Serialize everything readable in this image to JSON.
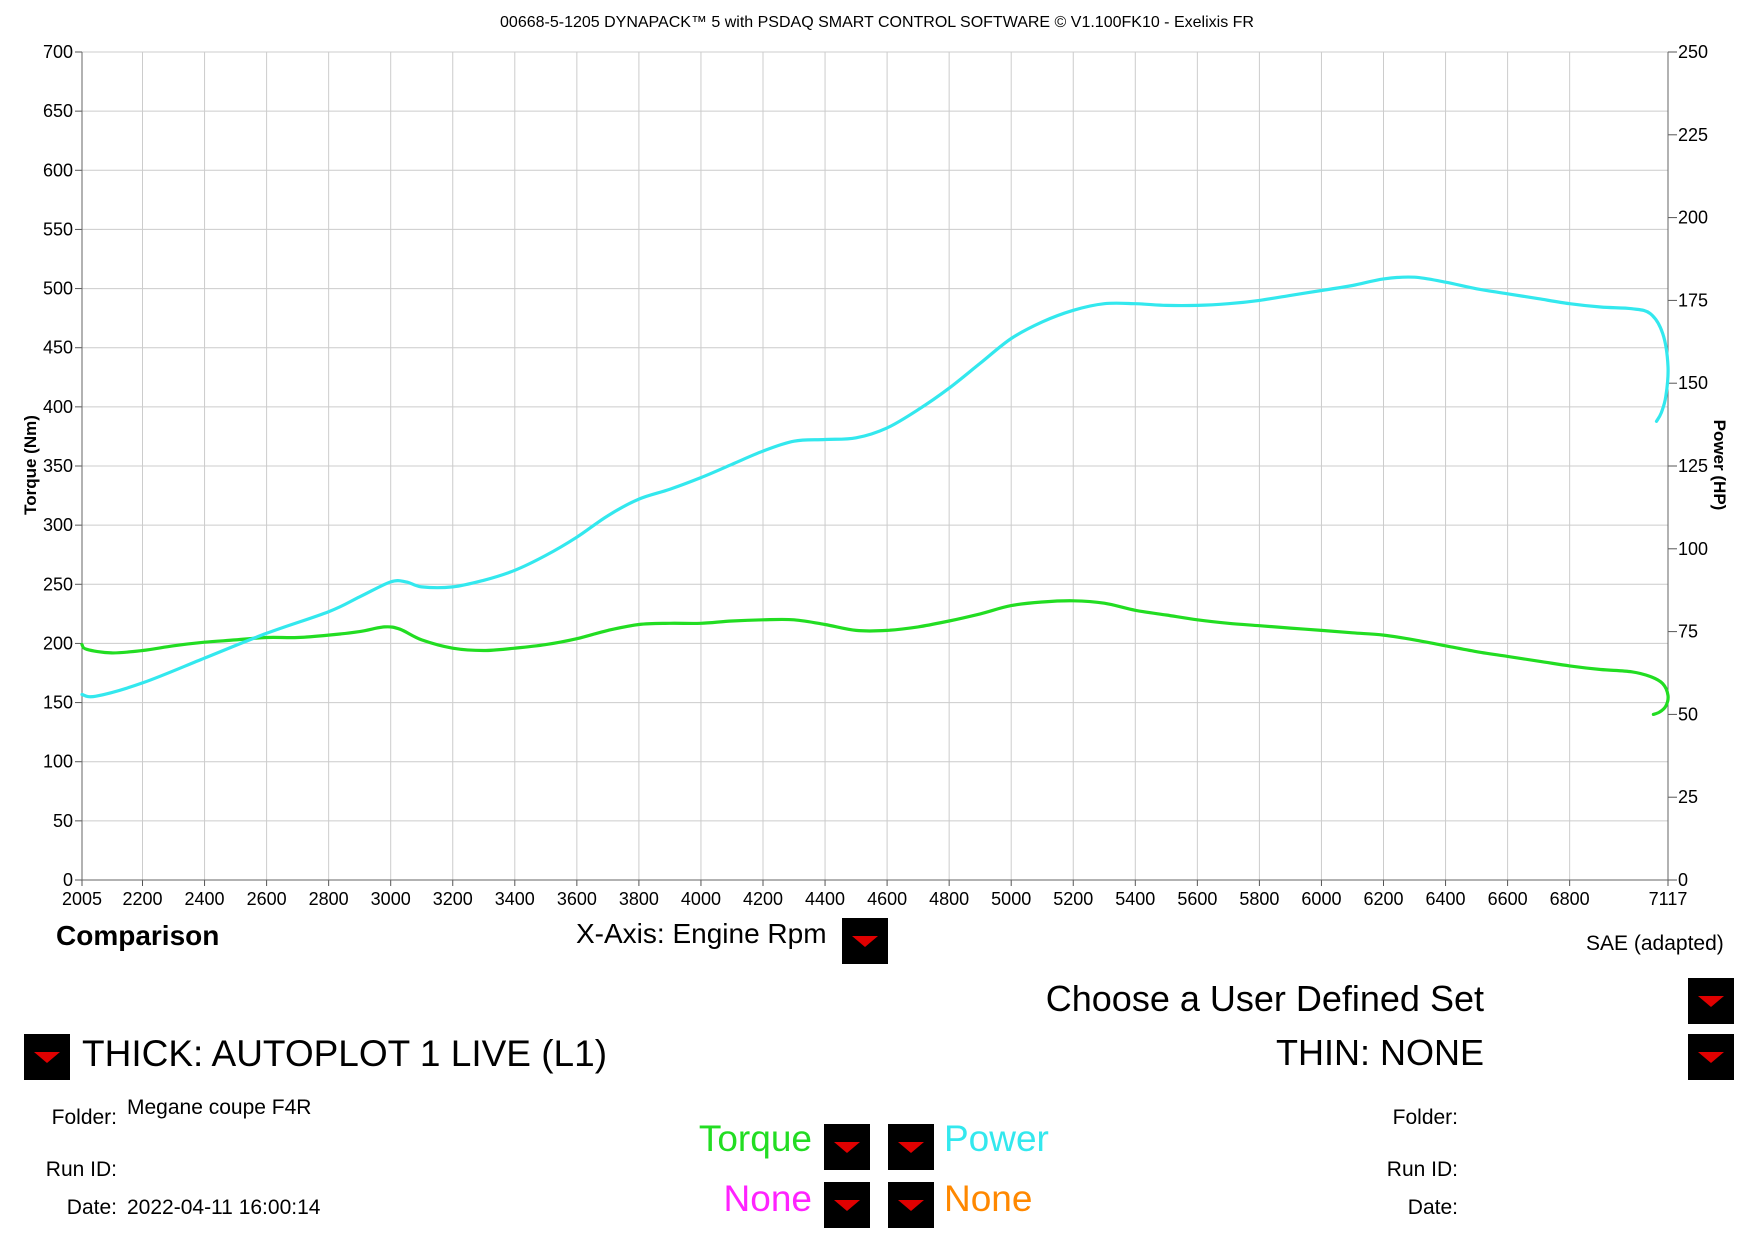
{
  "chart_data": {
    "type": "line",
    "title": "00668-5-1205 DYNAPACK™ 5 with PSDAQ SMART CONTROL SOFTWARE © V1.100FK10 - Exelixis FR",
    "xlabel": "",
    "ylabel_left": "Torque (Nm)",
    "ylabel_right": "Power (HP)",
    "xlim": [
      2005,
      7117
    ],
    "ylim_left": [
      0,
      700
    ],
    "ylim_right": [
      0,
      250
    ],
    "x_ticks": [
      "2005",
      "2200",
      "2400",
      "2600",
      "2800",
      "3000",
      "3200",
      "3400",
      "3600",
      "3800",
      "4000",
      "4200",
      "4400",
      "4600",
      "4800",
      "5000",
      "5200",
      "5400",
      "5600",
      "5800",
      "6000",
      "6200",
      "6400",
      "6600",
      "6800",
      "7117"
    ],
    "y_ticks_left": [
      "0",
      "50",
      "100",
      "150",
      "200",
      "250",
      "300",
      "350",
      "400",
      "450",
      "500",
      "550",
      "600",
      "650",
      "700"
    ],
    "y_ticks_right": [
      "0",
      "25",
      "50",
      "75",
      "100",
      "125",
      "150",
      "175",
      "200",
      "225",
      "250"
    ],
    "grid": true,
    "series": [
      {
        "name": "Torque",
        "axis": "left",
        "color": "#22dd22",
        "points": [
          [
            2005,
            199
          ],
          [
            2020,
            195
          ],
          [
            2100,
            192
          ],
          [
            2200,
            194
          ],
          [
            2300,
            198
          ],
          [
            2400,
            201
          ],
          [
            2500,
            203
          ],
          [
            2600,
            205
          ],
          [
            2700,
            205
          ],
          [
            2800,
            207
          ],
          [
            2900,
            210
          ],
          [
            2980,
            214
          ],
          [
            3030,
            212
          ],
          [
            3100,
            203
          ],
          [
            3200,
            196
          ],
          [
            3300,
            194
          ],
          [
            3400,
            196
          ],
          [
            3500,
            199
          ],
          [
            3600,
            204
          ],
          [
            3700,
            211
          ],
          [
            3800,
            216
          ],
          [
            3900,
            217
          ],
          [
            4000,
            217
          ],
          [
            4100,
            219
          ],
          [
            4200,
            220
          ],
          [
            4300,
            220
          ],
          [
            4400,
            216
          ],
          [
            4500,
            211
          ],
          [
            4600,
            211
          ],
          [
            4700,
            214
          ],
          [
            4800,
            219
          ],
          [
            4900,
            225
          ],
          [
            5000,
            232
          ],
          [
            5100,
            235
          ],
          [
            5200,
            236
          ],
          [
            5300,
            234
          ],
          [
            5400,
            228
          ],
          [
            5500,
            224
          ],
          [
            5600,
            220
          ],
          [
            5700,
            217
          ],
          [
            5800,
            215
          ],
          [
            5900,
            213
          ],
          [
            6000,
            211
          ],
          [
            6100,
            209
          ],
          [
            6200,
            207
          ],
          [
            6300,
            203
          ],
          [
            6400,
            198
          ],
          [
            6500,
            193
          ],
          [
            6600,
            189
          ],
          [
            6700,
            185
          ],
          [
            6800,
            181
          ],
          [
            6900,
            178
          ],
          [
            7000,
            176
          ],
          [
            7060,
            172
          ],
          [
            7100,
            166
          ],
          [
            7117,
            156
          ],
          [
            7110,
            147
          ],
          [
            7090,
            142
          ],
          [
            7070,
            140
          ]
        ]
      },
      {
        "name": "Power",
        "axis": "right",
        "color": "#33e8ee",
        "points": [
          [
            2005,
            56
          ],
          [
            2050,
            55.5
          ],
          [
            2200,
            59.5
          ],
          [
            2400,
            67
          ],
          [
            2600,
            74.5
          ],
          [
            2800,
            81
          ],
          [
            2900,
            85.5
          ],
          [
            3000,
            90
          ],
          [
            3050,
            90
          ],
          [
            3100,
            88.5
          ],
          [
            3200,
            88.5
          ],
          [
            3300,
            90.5
          ],
          [
            3400,
            93.5
          ],
          [
            3500,
            98
          ],
          [
            3600,
            103.5
          ],
          [
            3700,
            110
          ],
          [
            3800,
            115
          ],
          [
            3900,
            118
          ],
          [
            4000,
            121.5
          ],
          [
            4100,
            125.5
          ],
          [
            4200,
            129.5
          ],
          [
            4300,
            132.5
          ],
          [
            4400,
            133
          ],
          [
            4500,
            133.5
          ],
          [
            4600,
            136.5
          ],
          [
            4700,
            142
          ],
          [
            4800,
            148.5
          ],
          [
            4900,
            156
          ],
          [
            5000,
            163.5
          ],
          [
            5100,
            168.5
          ],
          [
            5200,
            172
          ],
          [
            5300,
            174
          ],
          [
            5400,
            174
          ],
          [
            5500,
            173.5
          ],
          [
            5600,
            173.5
          ],
          [
            5700,
            174
          ],
          [
            5800,
            175
          ],
          [
            5900,
            176.5
          ],
          [
            6000,
            178
          ],
          [
            6100,
            179.5
          ],
          [
            6200,
            181.5
          ],
          [
            6300,
            182
          ],
          [
            6400,
            180.5
          ],
          [
            6500,
            178.5
          ],
          [
            6600,
            177
          ],
          [
            6700,
            175.5
          ],
          [
            6800,
            174
          ],
          [
            6900,
            173
          ],
          [
            7000,
            172.5
          ],
          [
            7060,
            171
          ],
          [
            7100,
            165
          ],
          [
            7117,
            155
          ],
          [
            7110,
            146
          ],
          [
            7095,
            141
          ],
          [
            7080,
            138.5
          ]
        ]
      }
    ]
  },
  "labels": {
    "comparison": "Comparison",
    "xaxis_selector": "X-Axis: Engine Rpm",
    "correction": "SAE (adapted)",
    "user_defined_set": "Choose a User Defined Set",
    "thick_run": "THICK: AUTOPLOT 1 LIVE (L1)",
    "thin_run": "THIN: NONE"
  },
  "left_info": {
    "folder_label": "Folder:",
    "folder_value": "Megane coupe F4R",
    "runid_label": "Run ID:",
    "runid_value": "",
    "date_label": "Date:",
    "date_value": "2022-04-11 16:00:14"
  },
  "right_info": {
    "folder_label": "Folder:",
    "runid_label": "Run ID:",
    "date_label": "Date:"
  },
  "channels": {
    "left_top": {
      "label": "Torque",
      "color": "#22dd22"
    },
    "right_top": {
      "label": "Power",
      "color": "#33e8ee"
    },
    "left_bottom": {
      "label": "None",
      "color": "#ff22ff"
    },
    "right_bottom": {
      "label": "None",
      "color": "#ff8800"
    }
  },
  "icons": {
    "dropdown": "dropdown-arrow-icon"
  }
}
